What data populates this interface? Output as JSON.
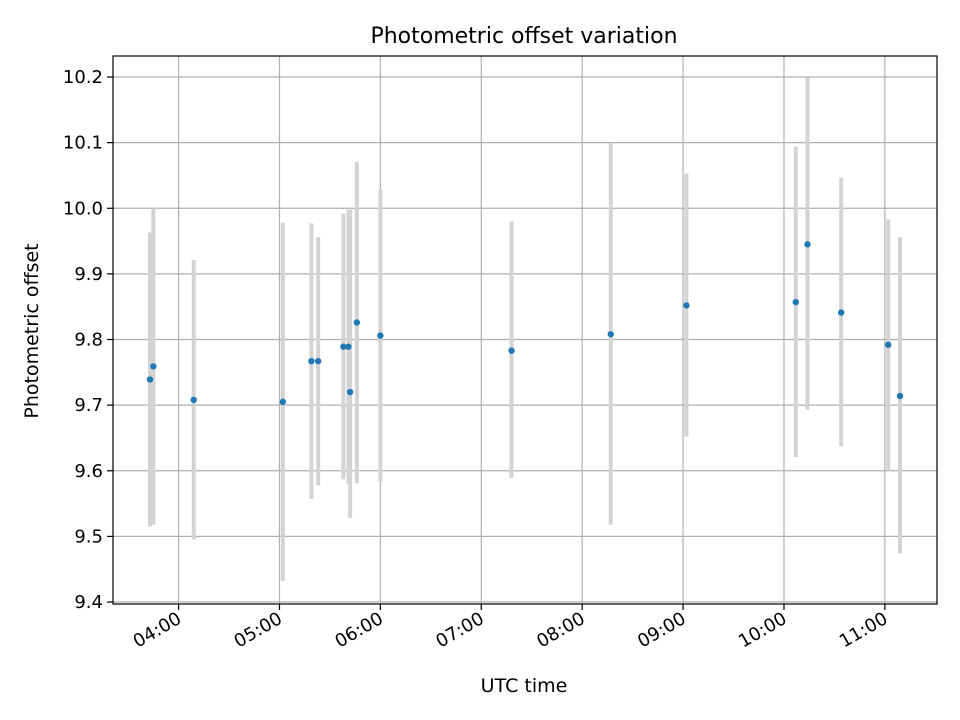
{
  "chart_data": {
    "type": "scatter",
    "title": "Photometric offset variation",
    "xlabel": "UTC time",
    "ylabel": "Photometric offset",
    "xlim": [
      "03:21",
      "11:31"
    ],
    "ylim": [
      9.397,
      10.232
    ],
    "x_ticks": [
      "04:00",
      "05:00",
      "06:00",
      "07:00",
      "08:00",
      "09:00",
      "10:00",
      "11:00"
    ],
    "y_ticks": [
      9.4,
      9.5,
      9.6,
      9.7,
      9.8,
      9.9,
      10.0,
      10.1,
      10.2
    ],
    "y_tick_labels": [
      "9.4",
      "9.5",
      "9.6",
      "9.7",
      "9.8",
      "9.9",
      "10.0",
      "10.1",
      "10.2"
    ],
    "grid": true,
    "legend": "none",
    "colors": {
      "points": "#1f77b4",
      "error_bars": "#d3d3d3",
      "grid": "#b0b0b0"
    },
    "series": [
      {
        "points": [
          {
            "x": "03:43",
            "y": 9.739,
            "yerr_low": 9.515,
            "yerr_high": 9.963
          },
          {
            "x": "03:45",
            "y": 9.759,
            "yerr_low": 9.518,
            "yerr_high": 10.0
          },
          {
            "x": "04:09",
            "y": 9.708,
            "yerr_low": 9.495,
            "yerr_high": 9.921
          },
          {
            "x": "05:02",
            "y": 9.705,
            "yerr_low": 9.432,
            "yerr_high": 9.978
          },
          {
            "x": "05:19",
            "y": 9.767,
            "yerr_low": 9.557,
            "yerr_high": 9.977
          },
          {
            "x": "05:23",
            "y": 9.767,
            "yerr_low": 9.578,
            "yerr_high": 9.956
          },
          {
            "x": "05:38",
            "y": 9.789,
            "yerr_low": 9.587,
            "yerr_high": 9.992
          },
          {
            "x": "05:41",
            "y": 9.789,
            "yerr_low": 9.58,
            "yerr_high": 9.998
          },
          {
            "x": "05:42",
            "y": 9.72,
            "yerr_low": 9.528,
            "yerr_high": 9.998
          },
          {
            "x": "05:46",
            "y": 9.826,
            "yerr_low": 9.581,
            "yerr_high": 10.071
          },
          {
            "x": "06:00",
            "y": 9.806,
            "yerr_low": 9.583,
            "yerr_high": 10.029
          },
          {
            "x": "07:18",
            "y": 9.783,
            "yerr_low": 9.589,
            "yerr_high": 9.98
          },
          {
            "x": "08:17",
            "y": 9.808,
            "yerr_low": 9.518,
            "yerr_high": 10.099
          },
          {
            "x": "09:02",
            "y": 9.852,
            "yerr_low": 9.652,
            "yerr_high": 10.053
          },
          {
            "x": "10:07",
            "y": 9.857,
            "yerr_low": 9.621,
            "yerr_high": 10.094
          },
          {
            "x": "10:14",
            "y": 9.945,
            "yerr_low": 9.693,
            "yerr_high": 10.199
          },
          {
            "x": "10:34",
            "y": 9.841,
            "yerr_low": 9.637,
            "yerr_high": 10.047
          },
          {
            "x": "11:02",
            "y": 9.792,
            "yerr_low": 9.6,
            "yerr_high": 9.983
          },
          {
            "x": "11:09",
            "y": 9.714,
            "yerr_low": 9.474,
            "yerr_high": 9.956
          }
        ]
      }
    ]
  }
}
